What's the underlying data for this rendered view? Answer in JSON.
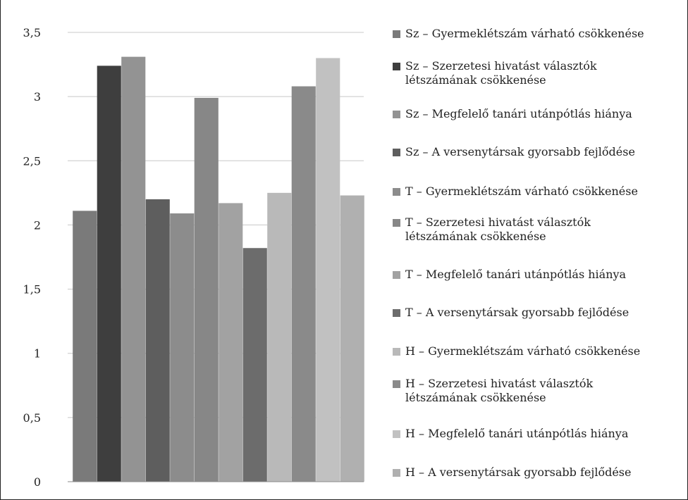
{
  "chart_data": {
    "type": "bar",
    "title": "",
    "xlabel": "",
    "ylabel": "",
    "ylim": [
      0,
      3.5
    ],
    "y_ticks": [
      "0",
      "0,5",
      "1",
      "1,5",
      "2",
      "2,5",
      "3",
      "3,5"
    ],
    "y_tick_values": [
      0,
      0.5,
      1,
      1.5,
      2,
      2.5,
      3,
      3.5
    ],
    "grid": true,
    "legend_position": "right",
    "series": [
      {
        "name": "Sz – Gyermeklétszám várható csökkenése",
        "values": [
          2.11
        ],
        "color": "#7a7a7a"
      },
      {
        "name": "Sz – Szerzetesi hivatást választók létszámának csökkenése",
        "values": [
          3.24
        ],
        "color": "#3e3e3e"
      },
      {
        "name": "Sz – Megfelelő tanári utánpótlás hiánya",
        "values": [
          3.31
        ],
        "color": "#939393"
      },
      {
        "name": "Sz – A versenytársak gyorsabb fejlődése",
        "values": [
          2.2
        ],
        "color": "#5e5e5e"
      },
      {
        "name": "T – Gyermeklétszám várható csökkenése",
        "values": [
          2.09
        ],
        "color": "#8c8c8c"
      },
      {
        "name": "T – Szerzetesi hivatást választók létszámának csökkenése",
        "values": [
          2.99
        ],
        "color": "#878787"
      },
      {
        "name": "T – Megfelelő tanári utánpótlás hiánya",
        "values": [
          2.17
        ],
        "color": "#a2a2a2"
      },
      {
        "name": "T – A versenytársak gyorsabb fejlődése",
        "values": [
          1.82
        ],
        "color": "#6c6c6c"
      },
      {
        "name": "H – Gyermeklétszám várható csökkenése",
        "values": [
          2.25
        ],
        "color": "#b9b9b9"
      },
      {
        "name": "H – Szerzetesi hivatást választók létszámának csökkenése",
        "values": [
          3.08
        ],
        "color": "#8a8a8a"
      },
      {
        "name": "H – Megfelelő tanári utánpótlás hiánya",
        "values": [
          3.3
        ],
        "color": "#c1c1c1"
      },
      {
        "name": "H – A versenytársak gyorsabb fejlődése",
        "values": [
          2.23
        ],
        "color": "#b0b0b0"
      }
    ]
  },
  "legend": {
    "items": [
      {
        "lines": [
          "Sz – Gyermeklétszám várható csökkenése"
        ]
      },
      {
        "lines": [
          "Sz – Szerzetesi hivatást választók",
          "létszámának csökkenése"
        ]
      },
      {
        "lines": [
          "Sz – Megfelelő tanári utánpótlás hiánya"
        ]
      },
      {
        "lines": [
          "Sz – A versenytársak gyorsabb fejlődése"
        ]
      },
      {
        "lines": [
          "T – Gyermeklétszám várható csökkenése"
        ]
      },
      {
        "lines": [
          "T – Szerzetesi hivatást választók",
          "létszámának csökkenése"
        ]
      },
      {
        "lines": [
          "T – Megfelelő tanári utánpótlás hiánya"
        ]
      },
      {
        "lines": [
          "T – A versenytársak gyorsabb fejlődése"
        ]
      },
      {
        "lines": [
          "H – Gyermeklétszám várható csökkenése"
        ]
      },
      {
        "lines": [
          "H – Szerzetesi hivatást választók",
          "létszámának csökkenése"
        ]
      },
      {
        "lines": [
          "H – Megfelelő tanári utánpótlás hiánya"
        ]
      },
      {
        "lines": [
          "H – A versenytársak gyorsabb fejlődése"
        ]
      }
    ]
  }
}
